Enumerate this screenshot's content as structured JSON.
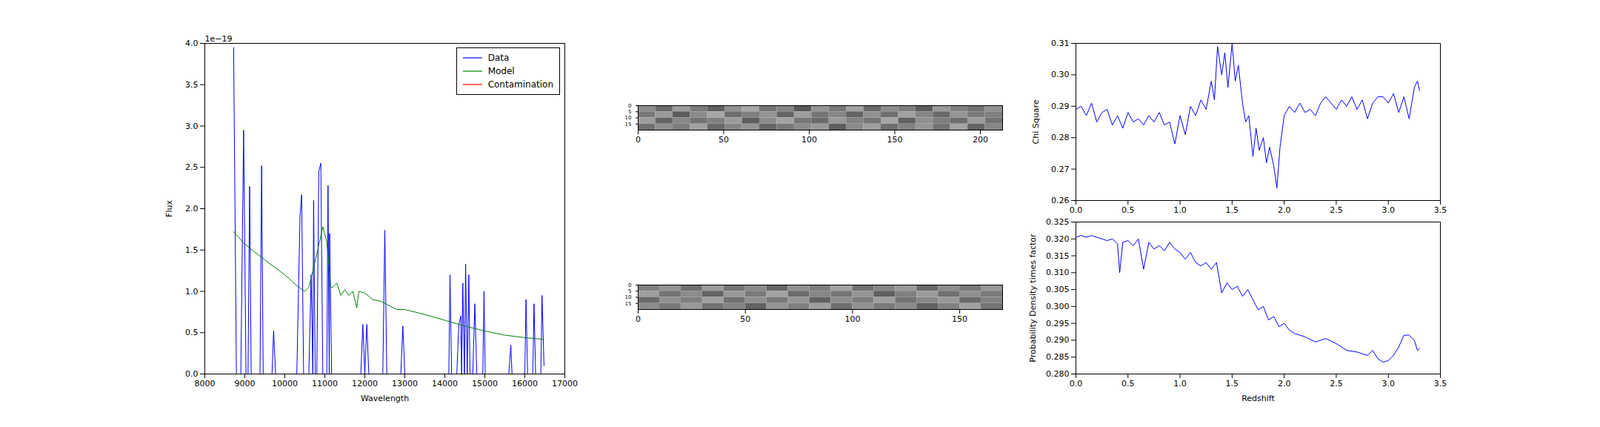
{
  "chart_data": [
    {
      "type": "line",
      "xlabel": "Wavelength",
      "ylabel": "Flux",
      "annotations": [
        "1e−19"
      ],
      "xlim": [
        8000,
        17000
      ],
      "xticks": [
        8000,
        9000,
        10000,
        11000,
        12000,
        13000,
        14000,
        15000,
        16000,
        17000
      ],
      "ylim": [
        0,
        4
      ],
      "yticks": [
        {
          "value": 0,
          "label": "0.0"
        },
        {
          "value": 0.5,
          "label": "0.5"
        },
        {
          "value": 1,
          "label": "1.0"
        },
        {
          "value": 1.5,
          "label": "1.5"
        },
        {
          "value": 2,
          "label": "2.0"
        },
        {
          "value": 2.5,
          "label": "2.5"
        },
        {
          "value": 3,
          "label": "3.0"
        },
        {
          "value": 3.5,
          "label": "3.5"
        },
        {
          "value": 4,
          "label": "4.0"
        }
      ],
      "legend": "upper right",
      "series": [
        {
          "name": "Data",
          "color": "#0000ff",
          "x": [
            8720,
            8790,
            8900,
            8970,
            9030,
            9080,
            9120,
            9160,
            9380,
            9420,
            9460,
            9680,
            9720,
            9770,
            10300,
            10380,
            10420,
            10470,
            10600,
            10660,
            10700,
            10720,
            10760,
            10800,
            10850,
            10900,
            10950,
            11050,
            11080,
            11110,
            11120,
            11170,
            11900,
            11950,
            12000,
            12050,
            12100,
            12450,
            12500,
            12550,
            12900,
            12950,
            13000,
            14100,
            14130,
            14170,
            14300,
            14350,
            14400,
            14420,
            14450,
            14490,
            14520,
            14560,
            14600,
            14630,
            14700,
            14750,
            14800,
            14950,
            14980,
            15010,
            15600,
            15650,
            15680,
            16000,
            16030,
            16070,
            16200,
            16230,
            16270,
            16400,
            16430,
            16480
          ],
          "values": [
            3.95,
            0,
            0,
            2.95,
            0,
            0,
            2.27,
            0,
            0,
            2.52,
            0,
            0,
            0.52,
            0,
            0,
            1.9,
            2.17,
            0,
            0,
            1.2,
            0,
            2.1,
            0,
            0,
            2.45,
            2.55,
            0,
            0,
            2.28,
            0,
            1.7,
            0,
            0,
            0.6,
            0,
            0.6,
            0,
            0,
            1.74,
            0,
            0,
            0.58,
            0,
            0,
            1.2,
            0,
            0,
            0.6,
            0.7,
            0,
            1.1,
            0,
            1.33,
            0,
            1.2,
            0,
            0,
            0.85,
            0,
            0,
            1.0,
            0,
            0,
            0.35,
            0,
            0,
            0.9,
            0,
            0,
            0.85,
            0,
            0,
            0.95,
            0.1
          ]
        },
        {
          "name": "Model",
          "color": "#008000",
          "x": [
            8720,
            9000,
            9500,
            10000,
            10300,
            10500,
            10600,
            10800,
            10950,
            11050,
            11150,
            11200,
            11300,
            11400,
            11500,
            11600,
            11700,
            11800,
            11850,
            12000,
            12200,
            12400,
            12600,
            12800,
            13000,
            13500,
            14000,
            14500,
            15000,
            15500,
            16000,
            16450
          ],
          "values": [
            1.72,
            1.57,
            1.38,
            1.2,
            1.07,
            1.0,
            1.05,
            1.45,
            1.78,
            1.6,
            1.05,
            1.05,
            1.1,
            0.95,
            1.02,
            0.95,
            1.0,
            0.8,
            1.0,
            0.98,
            0.9,
            0.88,
            0.83,
            0.78,
            0.78,
            0.72,
            0.65,
            0.58,
            0.52,
            0.47,
            0.44,
            0.42
          ]
        },
        {
          "name": "Contamination",
          "color": "#ff0000",
          "x": [
            8720,
            16480
          ],
          "values": [
            0,
            0
          ]
        }
      ]
    },
    {
      "type": "heatmap",
      "xlim": [
        0,
        213
      ],
      "xticks": [
        0,
        50,
        100,
        150,
        200
      ],
      "ylim": [
        0,
        20
      ],
      "yticks": [
        0,
        5,
        10,
        15
      ],
      "zlim": [
        0,
        1
      ],
      "cells": [
        [
          0.55,
          0.42,
          0.61,
          0.48,
          0.38,
          0.57,
          0.66,
          0.45,
          0.52,
          0.35,
          0.58,
          0.47,
          0.63,
          0.41,
          0.55,
          0.49,
          0.36,
          0.6,
          0.5,
          0.44,
          0.57
        ],
        [
          0.47,
          0.6,
          0.36,
          0.54,
          0.65,
          0.43,
          0.5,
          0.58,
          0.4,
          0.62,
          0.46,
          0.53,
          0.39,
          0.57,
          0.44,
          0.63,
          0.52,
          0.41,
          0.59,
          0.48,
          0.5
        ],
        [
          0.62,
          0.39,
          0.53,
          0.45,
          0.5,
          0.61,
          0.37,
          0.55,
          0.64,
          0.47,
          0.42,
          0.6,
          0.51,
          0.46,
          0.65,
          0.38,
          0.56,
          0.49,
          0.43,
          0.61,
          0.45
        ],
        [
          0.44,
          0.56,
          0.49,
          0.63,
          0.41,
          0.52,
          0.58,
          0.4,
          0.47,
          0.55,
          0.6,
          0.37,
          0.54,
          0.62,
          0.43,
          0.51,
          0.59,
          0.45,
          0.64,
          0.39,
          0.53
        ]
      ]
    },
    {
      "type": "heatmap",
      "xlim": [
        0,
        170
      ],
      "xticks": [
        0,
        50,
        100,
        150
      ],
      "ylim": [
        0,
        20
      ],
      "yticks": [
        0,
        5,
        10,
        15
      ],
      "zlim": [
        0,
        1
      ],
      "cells": [
        [
          0.5,
          0.58,
          0.43,
          0.61,
          0.46,
          0.54,
          0.4,
          0.57,
          0.49,
          0.63,
          0.44,
          0.52,
          0.6,
          0.41,
          0.55,
          0.47,
          0.59
        ],
        [
          0.62,
          0.45,
          0.55,
          0.39,
          0.6,
          0.48,
          0.64,
          0.42,
          0.53,
          0.46,
          0.58,
          0.37,
          0.5,
          0.61,
          0.44,
          0.56,
          0.48
        ],
        [
          0.41,
          0.57,
          0.5,
          0.63,
          0.44,
          0.56,
          0.47,
          0.59,
          0.38,
          0.55,
          0.49,
          0.62,
          0.45,
          0.53,
          0.6,
          0.42,
          0.51
        ],
        [
          0.55,
          0.47,
          0.6,
          0.45,
          0.52,
          0.38,
          0.58,
          0.5,
          0.62,
          0.43,
          0.57,
          0.48,
          0.54,
          0.39,
          0.5,
          0.63,
          0.46
        ]
      ]
    },
    {
      "type": "line",
      "ylabel": "Chi Square",
      "color": "#0000ff",
      "xlim": [
        0,
        3.5
      ],
      "xticks": [
        {
          "value": 0,
          "label": "0.0"
        },
        {
          "value": 0.5,
          "label": "0.5"
        },
        {
          "value": 1,
          "label": "1.0"
        },
        {
          "value": 1.5,
          "label": "1.5"
        },
        {
          "value": 2,
          "label": "2.0"
        },
        {
          "value": 2.5,
          "label": "2.5"
        },
        {
          "value": 3,
          "label": "3.0"
        },
        {
          "value": 3.5,
          "label": "3.5"
        }
      ],
      "ylim": [
        0.26,
        0.31
      ],
      "yticks": [
        0.26,
        0.27,
        0.28,
        0.29,
        {
          "value": 0.3,
          "label": "0.30"
        },
        0.31
      ],
      "x": [
        0,
        0.05,
        0.1,
        0.15,
        0.2,
        0.25,
        0.3,
        0.35,
        0.4,
        0.45,
        0.5,
        0.55,
        0.6,
        0.65,
        0.7,
        0.75,
        0.8,
        0.85,
        0.9,
        0.95,
        1.0,
        1.05,
        1.1,
        1.15,
        1.2,
        1.25,
        1.3,
        1.33,
        1.36,
        1.4,
        1.43,
        1.46,
        1.5,
        1.53,
        1.56,
        1.6,
        1.63,
        1.66,
        1.7,
        1.73,
        1.76,
        1.8,
        1.83,
        1.86,
        1.9,
        1.93,
        1.96,
        2.0,
        2.05,
        2.1,
        2.15,
        2.2,
        2.25,
        2.3,
        2.35,
        2.4,
        2.45,
        2.5,
        2.55,
        2.6,
        2.65,
        2.7,
        2.75,
        2.8,
        2.85,
        2.9,
        2.95,
        3.0,
        3.05,
        3.1,
        3.15,
        3.2,
        3.25,
        3.28,
        3.3
      ],
      "values": [
        0.289,
        0.29,
        0.287,
        0.291,
        0.285,
        0.288,
        0.289,
        0.284,
        0.287,
        0.283,
        0.288,
        0.285,
        0.286,
        0.284,
        0.287,
        0.285,
        0.288,
        0.284,
        0.285,
        0.278,
        0.287,
        0.281,
        0.29,
        0.287,
        0.292,
        0.289,
        0.298,
        0.292,
        0.309,
        0.3,
        0.307,
        0.296,
        0.31,
        0.298,
        0.303,
        0.291,
        0.285,
        0.287,
        0.274,
        0.283,
        0.276,
        0.28,
        0.272,
        0.277,
        0.271,
        0.264,
        0.277,
        0.287,
        0.29,
        0.288,
        0.291,
        0.288,
        0.289,
        0.287,
        0.291,
        0.293,
        0.291,
        0.289,
        0.292,
        0.29,
        0.293,
        0.289,
        0.292,
        0.286,
        0.291,
        0.293,
        0.293,
        0.291,
        0.294,
        0.288,
        0.293,
        0.286,
        0.296,
        0.298,
        0.295
      ]
    },
    {
      "type": "line",
      "xlabel": "Redshift",
      "ylabel": "Probability Density times factor",
      "color": "#0000ff",
      "xlim": [
        0,
        3.5
      ],
      "xticks": [
        {
          "value": 0,
          "label": "0.0"
        },
        {
          "value": 0.5,
          "label": "0.5"
        },
        {
          "value": 1,
          "label": "1.0"
        },
        {
          "value": 1.5,
          "label": "1.5"
        },
        {
          "value": 2,
          "label": "2.0"
        },
        {
          "value": 2.5,
          "label": "2.5"
        },
        {
          "value": 3,
          "label": "3.0"
        },
        {
          "value": 3.5,
          "label": "3.5"
        }
      ],
      "ylim": [
        0.28,
        0.325
      ],
      "yticks": [
        {
          "value": 0.28,
          "label": "0.280"
        },
        0.285,
        {
          "value": 0.29,
          "label": "0.290"
        },
        0.295,
        {
          "value": 0.3,
          "label": "0.300"
        },
        0.305,
        {
          "value": 0.31,
          "label": "0.310"
        },
        0.315,
        {
          "value": 0.32,
          "label": "0.320"
        },
        0.325
      ],
      "x": [
        0,
        0.05,
        0.1,
        0.15,
        0.2,
        0.25,
        0.3,
        0.35,
        0.4,
        0.42,
        0.45,
        0.5,
        0.55,
        0.6,
        0.65,
        0.7,
        0.75,
        0.8,
        0.85,
        0.9,
        0.95,
        1.0,
        1.05,
        1.1,
        1.15,
        1.2,
        1.25,
        1.3,
        1.35,
        1.4,
        1.45,
        1.5,
        1.55,
        1.6,
        1.65,
        1.7,
        1.75,
        1.8,
        1.85,
        1.9,
        1.95,
        2.0,
        2.05,
        2.1,
        2.2,
        2.3,
        2.4,
        2.5,
        2.6,
        2.7,
        2.8,
        2.85,
        2.9,
        2.95,
        3.0,
        3.05,
        3.1,
        3.15,
        3.2,
        3.25,
        3.28,
        3.3
      ],
      "values": [
        0.3205,
        0.321,
        0.3205,
        0.321,
        0.3205,
        0.32,
        0.3195,
        0.32,
        0.3185,
        0.31,
        0.319,
        0.3195,
        0.318,
        0.32,
        0.311,
        0.319,
        0.317,
        0.318,
        0.3165,
        0.319,
        0.317,
        0.316,
        0.314,
        0.316,
        0.313,
        0.312,
        0.313,
        0.311,
        0.313,
        0.304,
        0.307,
        0.305,
        0.306,
        0.303,
        0.305,
        0.302,
        0.299,
        0.3,
        0.296,
        0.297,
        0.294,
        0.295,
        0.293,
        0.292,
        0.291,
        0.2895,
        0.2905,
        0.289,
        0.287,
        0.2865,
        0.2855,
        0.287,
        0.2845,
        0.2835,
        0.284,
        0.2855,
        0.288,
        0.2915,
        0.2915,
        0.29,
        0.287,
        0.2875
      ]
    }
  ]
}
